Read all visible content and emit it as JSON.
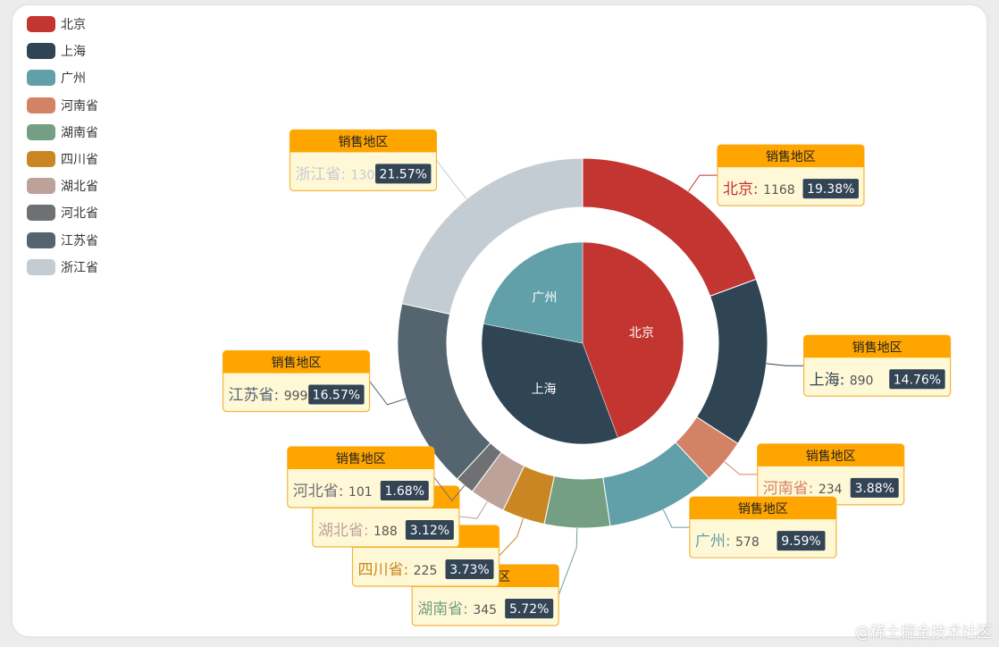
{
  "chart_data": {
    "type": "pie",
    "inner_ring": [
      {
        "name": "北京",
        "value": 1168
      },
      {
        "name": "上海",
        "value": 890
      },
      {
        "name": "广州",
        "value": 578
      }
    ],
    "outer_ring": [
      {
        "name": "北京",
        "value": 1168,
        "percent": "19.38%",
        "color": "#c23531"
      },
      {
        "name": "上海",
        "value": 890,
        "percent": "14.76%",
        "color": "#2f4554"
      },
      {
        "name": "河南省",
        "value": 234,
        "percent": "3.88%",
        "color": "#d48265"
      },
      {
        "name": "广州",
        "value": 578,
        "percent": "9.59%",
        "color": "#61a0a8"
      },
      {
        "name": "湖南省",
        "value": 345,
        "percent": "5.72%",
        "color": "#749f83"
      },
      {
        "name": "四川省",
        "value": 225,
        "percent": "3.73%",
        "color": "#ca8622"
      },
      {
        "name": "湖北省",
        "value": 188,
        "percent": "3.12%",
        "color": "#bda29a"
      },
      {
        "name": "河北省",
        "value": 101,
        "percent": "1.68%",
        "color": "#6e7074"
      },
      {
        "name": "江苏省",
        "value": 999,
        "percent": "16.57%",
        "color": "#546570"
      },
      {
        "name": "浙江省",
        "value": 1300,
        "percent": "21.57%",
        "color": "#c4ccd3"
      }
    ],
    "series_name": "销售地区",
    "legend": {
      "placement": "top-left",
      "items": [
        {
          "name": "北京",
          "color": "#c23531"
        },
        {
          "name": "上海",
          "color": "#2f4554"
        },
        {
          "name": "广州",
          "color": "#61a0a8"
        },
        {
          "name": "河南省",
          "color": "#d48265"
        },
        {
          "name": "湖南省",
          "color": "#749f83"
        },
        {
          "name": "四川省",
          "color": "#ca8622"
        },
        {
          "name": "湖北省",
          "color": "#bda29a"
        },
        {
          "name": "河北省",
          "color": "#6e7074"
        },
        {
          "name": "江苏省",
          "color": "#546570"
        },
        {
          "name": "浙江省",
          "color": "#c4ccd3"
        }
      ]
    }
  },
  "watermark": "@稀土掘金技术社区"
}
